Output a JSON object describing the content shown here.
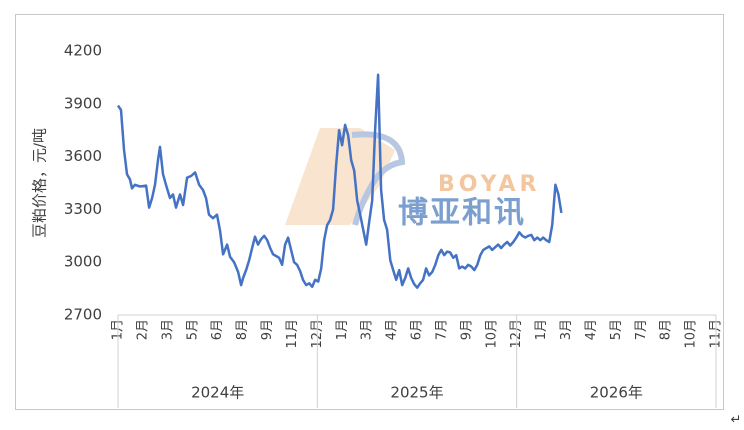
{
  "chart_data": {
    "type": "line",
    "y_label": "豆粕价格，元/吨",
    "ylim": [
      2700,
      4200
    ],
    "yticks": [
      2700,
      3000,
      3300,
      3600,
      3900,
      4200
    ],
    "xlim": [
      0,
      36
    ],
    "xticks": [
      {
        "value": 0,
        "label": "1月"
      },
      {
        "value": 1.5,
        "label": "2月"
      },
      {
        "value": 3,
        "label": "3月"
      },
      {
        "value": 4.5,
        "label": "5月"
      },
      {
        "value": 6,
        "label": "6月"
      },
      {
        "value": 7.5,
        "label": "8月"
      },
      {
        "value": 9,
        "label": "9月"
      },
      {
        "value": 10.5,
        "label": "11月"
      },
      {
        "value": 12,
        "label": "12月"
      },
      {
        "value": 13.5,
        "label": "1月"
      },
      {
        "value": 15,
        "label": "3月"
      },
      {
        "value": 16.5,
        "label": "4月"
      },
      {
        "value": 18,
        "label": "6月"
      },
      {
        "value": 19.5,
        "label": "7月"
      },
      {
        "value": 21,
        "label": "9月"
      },
      {
        "value": 22.5,
        "label": "10月"
      },
      {
        "value": 24,
        "label": "12月"
      },
      {
        "value": 25.5,
        "label": "1月"
      },
      {
        "value": 27,
        "label": "3月"
      },
      {
        "value": 28.5,
        "label": "4月"
      },
      {
        "value": 30,
        "label": "5月"
      },
      {
        "value": 31.5,
        "label": "7月"
      },
      {
        "value": 33,
        "label": "8月"
      },
      {
        "value": 34.5,
        "label": "10月"
      },
      {
        "value": 36,
        "label": "11月"
      }
    ],
    "xgroups": [
      "2024年",
      "2025年",
      "2026年"
    ],
    "series": [
      {
        "color": "#4472c4",
        "x": [
          0,
          0.18,
          0.36,
          0.54,
          0.72,
          0.84,
          1.02,
          1.33,
          1.69,
          1.87,
          2.05,
          2.23,
          2.41,
          2.53,
          2.71,
          2.95,
          3.13,
          3.31,
          3.49,
          3.73,
          3.92,
          4.16,
          4.4,
          4.64,
          4.88,
          5.12,
          5.3,
          5.48,
          5.72,
          5.96,
          6.14,
          6.33,
          6.57,
          6.75,
          6.99,
          7.23,
          7.41,
          7.53,
          7.71,
          7.89,
          8.07,
          8.25,
          8.43,
          8.61,
          8.8,
          8.98,
          9.16,
          9.34,
          9.52,
          9.7,
          9.88,
          10.06,
          10.24,
          10.42,
          10.6,
          10.78,
          10.96,
          11.14,
          11.33,
          11.51,
          11.69,
          11.87,
          12.05,
          12.23,
          12.41,
          12.59,
          12.77,
          12.95,
          13.13,
          13.31,
          13.49,
          13.67,
          13.86,
          14.04,
          14.22,
          14.4,
          14.58,
          14.76,
          14.94,
          15.12,
          15.3,
          15.48,
          15.66,
          15.84,
          16.02,
          16.2,
          16.39,
          16.57,
          16.75,
          16.93,
          17.11,
          17.29,
          17.47,
          17.65,
          17.83,
          18.01,
          18.19,
          18.37,
          18.55,
          18.73,
          18.92,
          19.1,
          19.28,
          19.46,
          19.64,
          19.82,
          20,
          20.18,
          20.36,
          20.54,
          20.72,
          20.9,
          21.08,
          21.27,
          21.45,
          21.63,
          21.81,
          21.99,
          22.17,
          22.35,
          22.53,
          22.71,
          22.89,
          23.07,
          23.25,
          23.43,
          23.61,
          23.8,
          23.98,
          24.16,
          24.34,
          24.52,
          24.7,
          24.88,
          25.06,
          25.24,
          25.42,
          25.6,
          25.78,
          25.96,
          26.14,
          26.33,
          26.51,
          26.69
        ],
        "values": [
          3890,
          3865,
          3640,
          3500,
          3470,
          3420,
          3440,
          3430,
          3435,
          3310,
          3365,
          3440,
          3580,
          3655,
          3500,
          3420,
          3365,
          3385,
          3310,
          3385,
          3325,
          3480,
          3490,
          3510,
          3440,
          3410,
          3365,
          3270,
          3250,
          3270,
          3180,
          3045,
          3100,
          3030,
          3000,
          2945,
          2870,
          2910,
          2955,
          3010,
          3080,
          3145,
          3100,
          3130,
          3150,
          3125,
          3080,
          3045,
          3035,
          3025,
          2985,
          3100,
          3140,
          3070,
          3000,
          2985,
          2950,
          2900,
          2870,
          2880,
          2860,
          2900,
          2890,
          2965,
          3125,
          3210,
          3240,
          3300,
          3550,
          3750,
          3665,
          3780,
          3720,
          3580,
          3520,
          3350,
          3270,
          3185,
          3100,
          3230,
          3350,
          3750,
          4065,
          3410,
          3240,
          3185,
          3010,
          2955,
          2900,
          2955,
          2870,
          2910,
          2965,
          2910,
          2875,
          2855,
          2880,
          2900,
          2965,
          2925,
          2945,
          2985,
          3040,
          3070,
          3040,
          3060,
          3055,
          3025,
          3040,
          2965,
          2975,
          2965,
          2985,
          2975,
          2955,
          2985,
          3040,
          3070,
          3080,
          3090,
          3070,
          3085,
          3100,
          3080,
          3100,
          3115,
          3095,
          3115,
          3140,
          3170,
          3150,
          3140,
          3150,
          3155,
          3125,
          3140,
          3125,
          3140,
          3125,
          3115,
          3210,
          3440,
          3385,
          3280
        ]
      }
    ]
  },
  "watermark": {
    "latin": "BOYAR",
    "chinese": "博亚和讯"
  },
  "paragraph_mark": "↵"
}
